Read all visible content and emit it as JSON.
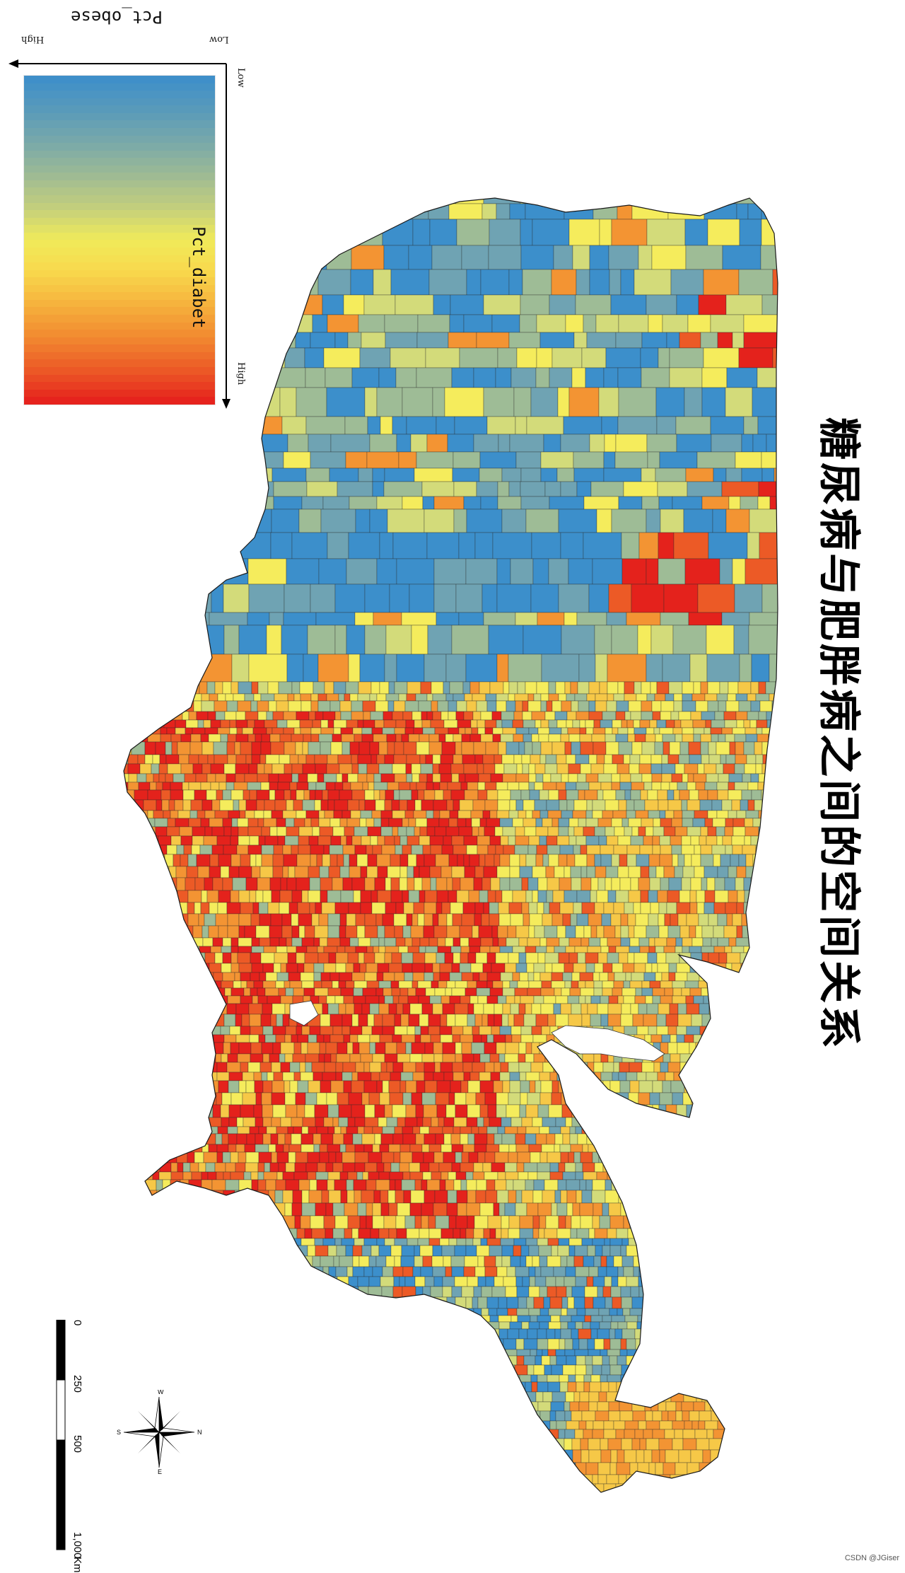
{
  "title": "糖尿病与肥胖病之间的空间关系",
  "legend": {
    "x_title": "Pct_obese",
    "x_high": "High",
    "x_low": "Low",
    "y_title": "Pct_diabet",
    "y_low": "Low",
    "y_high": "High",
    "ramp_colors": [
      "#3f8fc9",
      "#5a9bb9",
      "#7aa9a9",
      "#9ebb94",
      "#c4cf7c",
      "#f0ea5a",
      "#f8d84c",
      "#f6b23d",
      "#f28a30",
      "#ec5c27",
      "#e6231d"
    ]
  },
  "scale_bar": {
    "unit": "Km",
    "ticks": [
      "0",
      "250",
      "500",
      "1,000"
    ]
  },
  "compass": {
    "N": "N",
    "S": "S",
    "E": "E",
    "W": "W"
  },
  "watermark": "CSDN @JGiser",
  "colors": {
    "blue": "#3c8fcb",
    "blue_grey": "#6fa3b3",
    "grey_green": "#9ebc96",
    "yellow_green": "#d3db7a",
    "yellow": "#f5ec5c",
    "orange_yellow": "#f6c847",
    "orange": "#f39433",
    "red_orange": "#ec5a26",
    "red": "#e4221c"
  }
}
